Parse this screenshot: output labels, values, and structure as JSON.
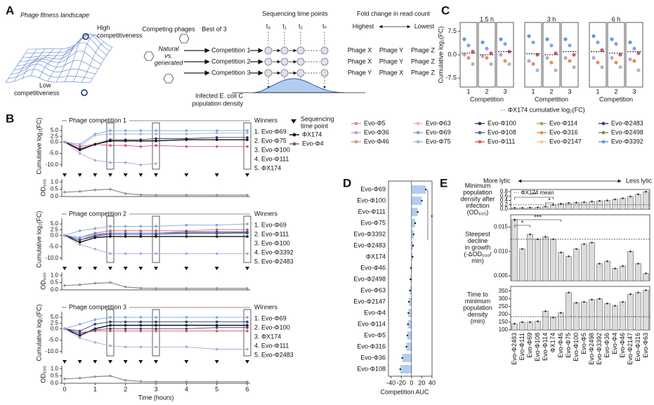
{
  "diagram": {
    "label": "A",
    "landscape_title": "Phage fitness landscape",
    "high": [
      "High",
      "competitiveness"
    ],
    "low": [
      "Low",
      "competitiveness"
    ],
    "competing": "Competing phages",
    "natural": [
      "Natural",
      "vs.",
      "generated"
    ],
    "best": "Best of 3",
    "competitions": [
      "Competition 1",
      "Competition 2",
      "Competition 3"
    ],
    "seq_title": "Sequencing time points",
    "timepoints": [
      "t₀",
      "t₁",
      "t₂",
      "tₙ"
    ],
    "fold_title": "Fold change in read count",
    "highest": "Highest",
    "lowest": "Lowest",
    "rankings": [
      [
        "Phage X",
        "Phage Y",
        "Phage Z"
      ],
      [
        "Phage X",
        "Phage Y",
        "Phage Z"
      ],
      [
        "Phage Y",
        "Phage X",
        "Phage Z"
      ]
    ],
    "infected": [
      "Infected E. coli C",
      "population density"
    ]
  },
  "chart_data": [
    {
      "type": "line",
      "label": "B",
      "x": [
        0,
        0.5,
        1,
        1.5,
        2,
        2.5,
        3,
        4,
        5,
        6
      ],
      "xlim": [
        0,
        6
      ],
      "xticks": [
        0,
        1,
        2,
        3,
        4,
        5,
        6
      ],
      "xlabel": "Time (hours)",
      "ylabel": "Cumulative log₂(FC)",
      "ylim": [
        -11,
        7.5
      ],
      "yticks": [
        {
          "value": 5,
          "label": "5.0"
        },
        2.5,
        {
          "value": 0,
          "label": "0.0"
        },
        {
          "value": -5,
          "label": "-5.0"
        },
        {
          "value": -10,
          "label": "-10.0"
        }
      ],
      "od_label": "OD₆₀₀",
      "od_ylim": [
        0,
        1.2
      ],
      "od_yticks": [
        {
          "value": 0,
          "label": "0.0"
        },
        0.5,
        {
          "value": 1,
          "label": "1.0"
        }
      ],
      "highlight_x": [
        1.5,
        3,
        6
      ],
      "winners_title": "Winners",
      "panels": [
        {
          "title": "Phage competition 1",
          "winners": [
            "1. Evo-Φ69",
            "2. Evo-Φ75",
            "3. Evo-Φ100",
            "4. Evo-Φ111",
            "5. ΦX174"
          ],
          "od": [
            0.3,
            0.35,
            0.45,
            0.5,
            0.2,
            0.12,
            0.1,
            0.1,
            0.1,
            0.1
          ],
          "series": [
            {
              "name": "Evo-Φ69",
              "color": "#7fa6e0",
              "values": [
                0,
                -1,
                3.5,
                5,
                5,
                5,
                5,
                5,
                5,
                5
              ]
            },
            {
              "name": "Evo-Φ75",
              "color": "#a9b6d9",
              "values": [
                0,
                -2,
                3,
                3.5,
                3.5,
                3.5,
                3.5,
                3.5,
                4,
                4
              ]
            },
            {
              "name": "Evo-Φ100",
              "color": "#2c3a78",
              "values": [
                0,
                -3,
                -1,
                1,
                1,
                1,
                1.5,
                1.5,
                2,
                2
              ]
            },
            {
              "name": "Evo-Φ111",
              "color": "#cf5b6c",
              "values": [
                0,
                -2,
                -1,
                -1.5,
                -1.5,
                -2,
                -1.5,
                -2,
                -2,
                -2
              ]
            },
            {
              "name": "ΦX174",
              "color": "#111111",
              "values": [
                0,
                -3.5,
                -1,
                0.5,
                0.5,
                0.5,
                0.5,
                1,
                1,
                1
              ]
            },
            {
              "name": "Evo-Φ36",
              "color": "#b9a2d3",
              "values": [
                0,
                -5,
                -8,
                -9,
                -9,
                -10,
                -9.5,
                null,
                null,
                null
              ]
            }
          ]
        },
        {
          "title": "Phage competition 2",
          "winners": [
            "1. Evo-Φ69",
            "2. Evo-Φ111",
            "3. Evo-Φ100",
            "4. Evo-Φ3392",
            "5. Evo-Φ2483"
          ],
          "od": [
            0.3,
            0.35,
            0.45,
            0.5,
            0.2,
            0.12,
            0.1,
            0.1,
            0.1,
            0.1
          ],
          "series": [
            {
              "name": "Evo-Φ69",
              "color": "#7fa6e0",
              "values": [
                0,
                2,
                3,
                4,
                4,
                4,
                4,
                4.5,
                4.5,
                5
              ]
            },
            {
              "name": "Evo-Φ111",
              "color": "#cf5b6c",
              "values": [
                0,
                -1,
                1,
                2,
                2,
                2,
                2,
                2,
                2.5,
                2.5
              ]
            },
            {
              "name": "Evo-Φ100",
              "color": "#2c3a78",
              "values": [
                0,
                -2,
                0,
                1,
                1,
                1,
                1,
                1.5,
                1.5,
                1.5
              ]
            },
            {
              "name": "Evo-Φ3392",
              "color": "#5b9be0",
              "values": [
                0,
                -1,
                0.5,
                1,
                1,
                1,
                1,
                1,
                1,
                1.2
              ]
            },
            {
              "name": "Evo-Φ2483",
              "color": "#4b3b82",
              "values": [
                0,
                -2,
                -0.5,
                0.5,
                0.5,
                0.5,
                0.5,
                0.8,
                0.8,
                1
              ]
            },
            {
              "name": "ΦX174",
              "color": "#111111",
              "values": [
                0,
                -3,
                -1,
                -0.5,
                -0.5,
                -0.5,
                -0.5,
                -0.5,
                -0.5,
                -0.5
              ]
            },
            {
              "name": "Evo-Φ36",
              "color": "#b9a2d3",
              "values": [
                0,
                -4,
                -6,
                -8,
                -8,
                -8,
                -8,
                -8,
                -8,
                -8
              ]
            }
          ]
        },
        {
          "title": "Phage competition 3",
          "winners": [
            "1. Evo-Φ69",
            "2. Evo-Φ100",
            "3. ΦX174",
            "4. Evo-Φ111",
            "5. Evo-Φ2483"
          ],
          "od": [
            0.3,
            0.35,
            0.45,
            0.5,
            0.2,
            0.12,
            0.1,
            0.1,
            0.1,
            0.1
          ],
          "series": [
            {
              "name": "Evo-Φ69",
              "color": "#7fa6e0",
              "values": [
                0,
                2,
                4,
                5,
                5,
                5,
                5,
                5,
                5,
                5
              ]
            },
            {
              "name": "Evo-Φ100",
              "color": "#2c3a78",
              "values": [
                0,
                -1,
                2,
                3,
                3,
                3,
                3,
                3,
                3,
                3
              ]
            },
            {
              "name": "ΦX174",
              "color": "#111111",
              "values": [
                0,
                -3,
                0,
                1.5,
                1.5,
                1.5,
                1.5,
                1.5,
                1.5,
                1.5
              ]
            },
            {
              "name": "Evo-Φ111",
              "color": "#cf5b6c",
              "values": [
                0,
                -2,
                -1,
                -1,
                -1,
                -1,
                -1,
                -1,
                -1,
                -1
              ]
            },
            {
              "name": "Evo-Φ2483",
              "color": "#4b3b82",
              "values": [
                0,
                -2,
                -0.5,
                0,
                0,
                0,
                0,
                0,
                0.5,
                0.5
              ]
            },
            {
              "name": "Evo-Φ36",
              "color": "#b9a2d3",
              "values": [
                0,
                -4,
                -6,
                -7.5,
                -8,
                -8,
                -8,
                -8,
                -9,
                -9
              ]
            }
          ]
        }
      ],
      "legend": {
        "title": [
          "Sequencing",
          "time point"
        ],
        "entries": [
          {
            "name": "ΦX174",
            "color": "#111111"
          },
          {
            "name": "Evo-Φ4",
            "color": "#8b5a4a"
          },
          {
            "name": "Evo-Φ5",
            "color": "#d98bb5"
          },
          {
            "name": "Evo-Φ36",
            "color": "#b9a2d3"
          },
          {
            "name": "Evo-Φ46",
            "color": "#c8a08a"
          },
          {
            "name": "Evo-Φ63",
            "color": "#f0b0c8"
          },
          {
            "name": "Evo-Φ69",
            "color": "#7fa6e0"
          },
          {
            "name": "Evo-Φ75",
            "color": "#a9b6d9"
          },
          {
            "name": "Evo-Φ100",
            "color": "#2c3a78"
          },
          {
            "name": "Evo-Φ108",
            "color": "#4a6ab0"
          },
          {
            "name": "Evo-Φ111",
            "color": "#cf5b6c"
          },
          {
            "name": "Evo-Φ114",
            "color": "#b0a060"
          },
          {
            "name": "Evo-Φ316",
            "color": "#e0915a"
          },
          {
            "name": "Evo-Φ2147",
            "color": "#e8d0a0"
          },
          {
            "name": "Evo-Φ2483",
            "color": "#4b3b82"
          },
          {
            "name": "Evo-Φ2498",
            "color": "#8a8a3a"
          },
          {
            "name": "Evo-Φ3392",
            "color": "#5b9be0"
          }
        ]
      }
    },
    {
      "type": "strip",
      "label": "C",
      "ylabel": "Cumulative log₂(FC)",
      "ylim": [
        -9.5,
        9.5
      ],
      "yticks": [
        7.5,
        {
          "value": 0,
          "label": "0.0"
        },
        -7.5
      ],
      "categories": [
        "1",
        "2",
        "3"
      ],
      "xlabel": "Competition",
      "point_colors": [
        "#5b9be0",
        "#7fa6e0",
        "#cf5b6c",
        "#b9a2d3",
        "#e0915a",
        "#a9b6d9"
      ],
      "note": "··· ΦX174 cumulative log₂(FC)",
      "panels": [
        {
          "title": "1.5 h",
          "groups": [
            [
              5,
              3,
              1,
              0,
              -1,
              -3
            ],
            [
              4,
              2,
              0.5,
              -0.5,
              -1,
              -3
            ],
            [
              5,
              3.5,
              1,
              0,
              -2,
              -3
            ]
          ],
          "reference": [
            0.5,
            0,
            1
          ]
        },
        {
          "title": "3 h",
          "groups": [
            [
              6,
              4,
              0,
              -2,
              -3,
              -5
            ],
            [
              5,
              3,
              0.5,
              -1,
              -2.5,
              -5
            ],
            [
              5,
              3,
              0,
              -1,
              -2,
              -4
            ]
          ],
          "reference": [
            0.3,
            0,
            1
          ]
        },
        {
          "title": "6 h",
          "groups": [
            [
              6,
              4,
              1.5,
              -1,
              -2.5,
              -4
            ],
            [
              5,
              3.5,
              0,
              -1,
              -2.5,
              -4
            ],
            [
              4,
              2,
              0.5,
              -1.5,
              -2,
              -5
            ]
          ],
          "reference": [
            1,
            0.5,
            1
          ]
        }
      ]
    },
    {
      "type": "hbar",
      "label": "D",
      "categories": [
        "Evo-Φ69",
        "Evo-Φ100",
        "Evo-Φ111",
        "Evo-Φ75",
        "Evo-Φ3392",
        "Evo-Φ2483",
        "ΦX174",
        "Evo-Φ46",
        "Evo-Φ2498",
        "Evo-Φ63",
        "Evo-Φ2147",
        "Evo-Φ4",
        "Evo-Φ114",
        "Evo-Φ5",
        "Evo-Φ316",
        "Evo-Φ36",
        "Evo-Φ108"
      ],
      "values": [
        28,
        20,
        12,
        7,
        4,
        3,
        2,
        -1,
        -2,
        -3,
        -5,
        -6,
        -7,
        -8,
        -10,
        -18,
        -22
      ],
      "color": "#b3cdf0",
      "xlim": [
        -45,
        40
      ],
      "xticks": [
        -40,
        -20,
        0,
        20,
        40
      ],
      "xlabel": "Competition AUC",
      "annotation": "*"
    },
    {
      "type": "bar",
      "label": "E",
      "categories": [
        "Evo-Φ2483",
        "Evo-Φ111",
        "Evo-Φ69",
        "Evo-Φ108",
        "Evo-Φ114",
        "ΦX174",
        "Evo-Φ46",
        "Evo-Φ75",
        "Evo-Φ100",
        "Evo-Φ5",
        "Evo-Φ2498",
        "Evo-Φ3392",
        "Evo-Φ36",
        "Evo-Φ4",
        "Evo-Φ46",
        "Evo-Φ2147",
        "Evo-Φ316",
        "Evo-Φ63"
      ],
      "color": "#dcdcdc",
      "header": {
        "left": "More lytic",
        "right": "Less lytic"
      },
      "reference_label": "··· ΦX174 mean",
      "panels": [
        {
          "ylabel": [
            "Minimum",
            "population",
            "density after",
            "infection",
            "(OD₆₀₀)"
          ],
          "ylim": [
            0,
            0.9
          ],
          "yticks": [
            {
              "value": 0,
              "label": "0.0"
            },
            0.2,
            0.4,
            0.6,
            0.8
          ],
          "values": [
            0.06,
            0.06,
            0.07,
            0.08,
            0.12,
            0.2,
            0.25,
            0.28,
            0.3,
            0.32,
            0.35,
            0.38,
            0.4,
            0.45,
            0.5,
            0.58,
            0.68,
            0.8
          ],
          "reference": 0.2,
          "annotations": [
            "**",
            "*"
          ]
        },
        {
          "ylabel": [
            "Steepest",
            "decline",
            "in growth",
            "(-ΔOD₆₀₀/",
            "min)"
          ],
          "ylim": [
            0.004,
            0.0175
          ],
          "yticks": [
            0.005,
            {
              "value": 0.01,
              "label": "0.010"
            },
            0.015
          ],
          "values": [
            0.0165,
            0.0105,
            0.0135,
            0.0125,
            0.013,
            0.0125,
            0.0098,
            0.009,
            0.0105,
            0.0115,
            0.0118,
            0.0075,
            0.008,
            0.0065,
            0.007,
            0.01,
            0.0075,
            0.0055
          ],
          "reference": 0.0125,
          "annotations": [
            "***",
            "*"
          ]
        },
        {
          "ylabel": [
            "Time to",
            "minimum",
            "population",
            "density",
            "(min)"
          ],
          "ylim": [
            100,
            380
          ],
          "yticks": [
            100,
            150,
            200,
            250,
            300,
            350
          ],
          "values": [
            140,
            150,
            150,
            155,
            220,
            180,
            210,
            340,
            275,
            280,
            295,
            300,
            270,
            255,
            280,
            330,
            340,
            355
          ],
          "reference": 185,
          "annotations": []
        }
      ]
    }
  ]
}
